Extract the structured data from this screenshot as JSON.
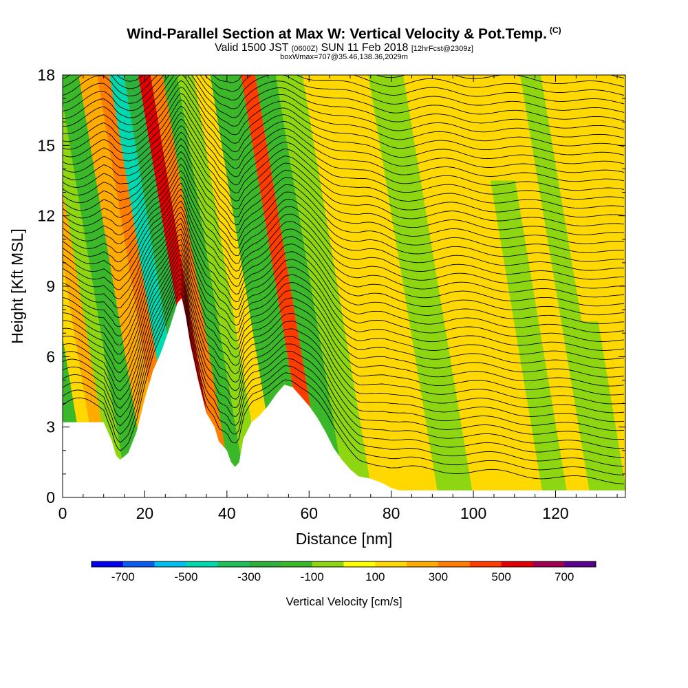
{
  "titles": {
    "main": "Wind-Parallel Section at Max W: Vertical Velocity & Pot.Temp.",
    "copyright": "(C)",
    "valid_prefix": "Valid 1500 JST",
    "valid_utc": "(0600Z)",
    "valid_date": "SUN 11 Feb 2018",
    "forecast": "[12hrFcst@2309z]",
    "boxinfo": "boxWmax=707@35.46,138.36,2029m"
  },
  "chart_data": {
    "type": "heatmap",
    "title": "Wind-Parallel Section at Max W: Vertical Velocity & Pot.Temp.",
    "xlabel": "Distance [nm]",
    "ylabel": "Height [Kft MSL]",
    "xlim": [
      0,
      137
    ],
    "ylim": [
      0,
      18
    ],
    "x_ticks": [
      0,
      20,
      40,
      60,
      80,
      100,
      120
    ],
    "y_ticks": [
      0,
      3,
      6,
      9,
      12,
      15,
      18
    ],
    "colorbar": {
      "label": "Vertical Velocity [cm/s]",
      "tick_values": [
        -700,
        -500,
        -300,
        -100,
        100,
        300,
        500,
        700
      ],
      "bounds": [
        -800,
        -700,
        -600,
        -500,
        -400,
        -300,
        -200,
        -100,
        0,
        100,
        200,
        300,
        400,
        500,
        600,
        700,
        800
      ],
      "colors": [
        "#0000ee",
        "#0a5cf0",
        "#00bff0",
        "#00d9b0",
        "#1fbf5a",
        "#2db03c",
        "#3ab82a",
        "#8ed612",
        "#ffff00",
        "#ffd800",
        "#ffab00",
        "#ff7d00",
        "#ff3c00",
        "#e00000",
        "#a00050",
        "#5a0090"
      ]
    },
    "terrain": [
      [
        0,
        3.2
      ],
      [
        10,
        3.2
      ],
      [
        12,
        2.4
      ],
      [
        13,
        1.8
      ],
      [
        14,
        1.6
      ],
      [
        16,
        1.9
      ],
      [
        18,
        2.8
      ],
      [
        20,
        4.2
      ],
      [
        22,
        5.4
      ],
      [
        24,
        6.2
      ],
      [
        26,
        7.2
      ],
      [
        28,
        8.3
      ],
      [
        29,
        8.5
      ],
      [
        30,
        7.7
      ],
      [
        31,
        6.6
      ],
      [
        32,
        5.8
      ],
      [
        33,
        5.0
      ],
      [
        34,
        4.3
      ],
      [
        35,
        3.6
      ],
      [
        36,
        3.3
      ],
      [
        37,
        3.0
      ],
      [
        38,
        2.4
      ],
      [
        40,
        2.0
      ],
      [
        41,
        1.5
      ],
      [
        42,
        1.3
      ],
      [
        43,
        1.5
      ],
      [
        44,
        2.5
      ],
      [
        46,
        3.2
      ],
      [
        48,
        3.5
      ],
      [
        50,
        3.9
      ],
      [
        52,
        4.4
      ],
      [
        54,
        4.8
      ],
      [
        56,
        4.7
      ],
      [
        58,
        4.3
      ],
      [
        60,
        3.9
      ],
      [
        62,
        3.4
      ],
      [
        64,
        2.8
      ],
      [
        66,
        2.1
      ],
      [
        68,
        1.6
      ],
      [
        70,
        1.2
      ],
      [
        72,
        0.9
      ],
      [
        75,
        0.8
      ],
      [
        78,
        0.6
      ],
      [
        80,
        0.4
      ],
      [
        82,
        0.3
      ],
      [
        84,
        0.3
      ],
      [
        137,
        0.3
      ]
    ],
    "velocity_bands": [
      {
        "x": 1.5,
        "w": -100,
        "h": 18
      },
      {
        "x": 5,
        "w": -200,
        "h": 18
      },
      {
        "x": 8,
        "w": 100,
        "h": 18
      },
      {
        "x": 11,
        "w": 200,
        "h": 18
      },
      {
        "x": 14,
        "w": -100,
        "h": 18
      },
      {
        "x": 18,
        "w": -200,
        "h": 18
      },
      {
        "x": 24,
        "w": 200,
        "h": 18
      },
      {
        "x": 27,
        "w": 300,
        "h": 18
      },
      {
        "x": 30,
        "w": -500,
        "h": 18
      },
      {
        "x": 34,
        "w": -300,
        "h": 18
      },
      {
        "x": 37,
        "w": 500,
        "h": 18
      },
      {
        "x": 40,
        "w": 300,
        "h": 18
      },
      {
        "x": 43,
        "w": -200,
        "h": 18
      },
      {
        "x": 47,
        "w": -100,
        "h": 18
      },
      {
        "x": 51,
        "w": 100,
        "h": 18
      },
      {
        "x": 55,
        "w": -200,
        "h": 18
      },
      {
        "x": 59,
        "w": -200,
        "h": 18
      },
      {
        "x": 62,
        "w": 400,
        "h": 18
      },
      {
        "x": 66,
        "w": -200,
        "h": 18
      },
      {
        "x": 72,
        "w": -100,
        "h": 18
      },
      {
        "x": 79,
        "w": 100,
        "h": 18
      },
      {
        "x": 88,
        "w": 100,
        "h": 18
      },
      {
        "x": 95,
        "w": -100,
        "h": 18
      },
      {
        "x": 105,
        "w": 100,
        "h": 12
      },
      {
        "x": 114,
        "w": 100,
        "h": 18
      },
      {
        "x": 120,
        "w": -100,
        "h": 13.5
      },
      {
        "x": 126,
        "w": 100,
        "h": 18
      },
      {
        "x": 131,
        "w": -100,
        "h": 18
      },
      {
        "x": 136,
        "w": -100,
        "h": 7.5
      }
    ],
    "contour_count": 50
  }
}
